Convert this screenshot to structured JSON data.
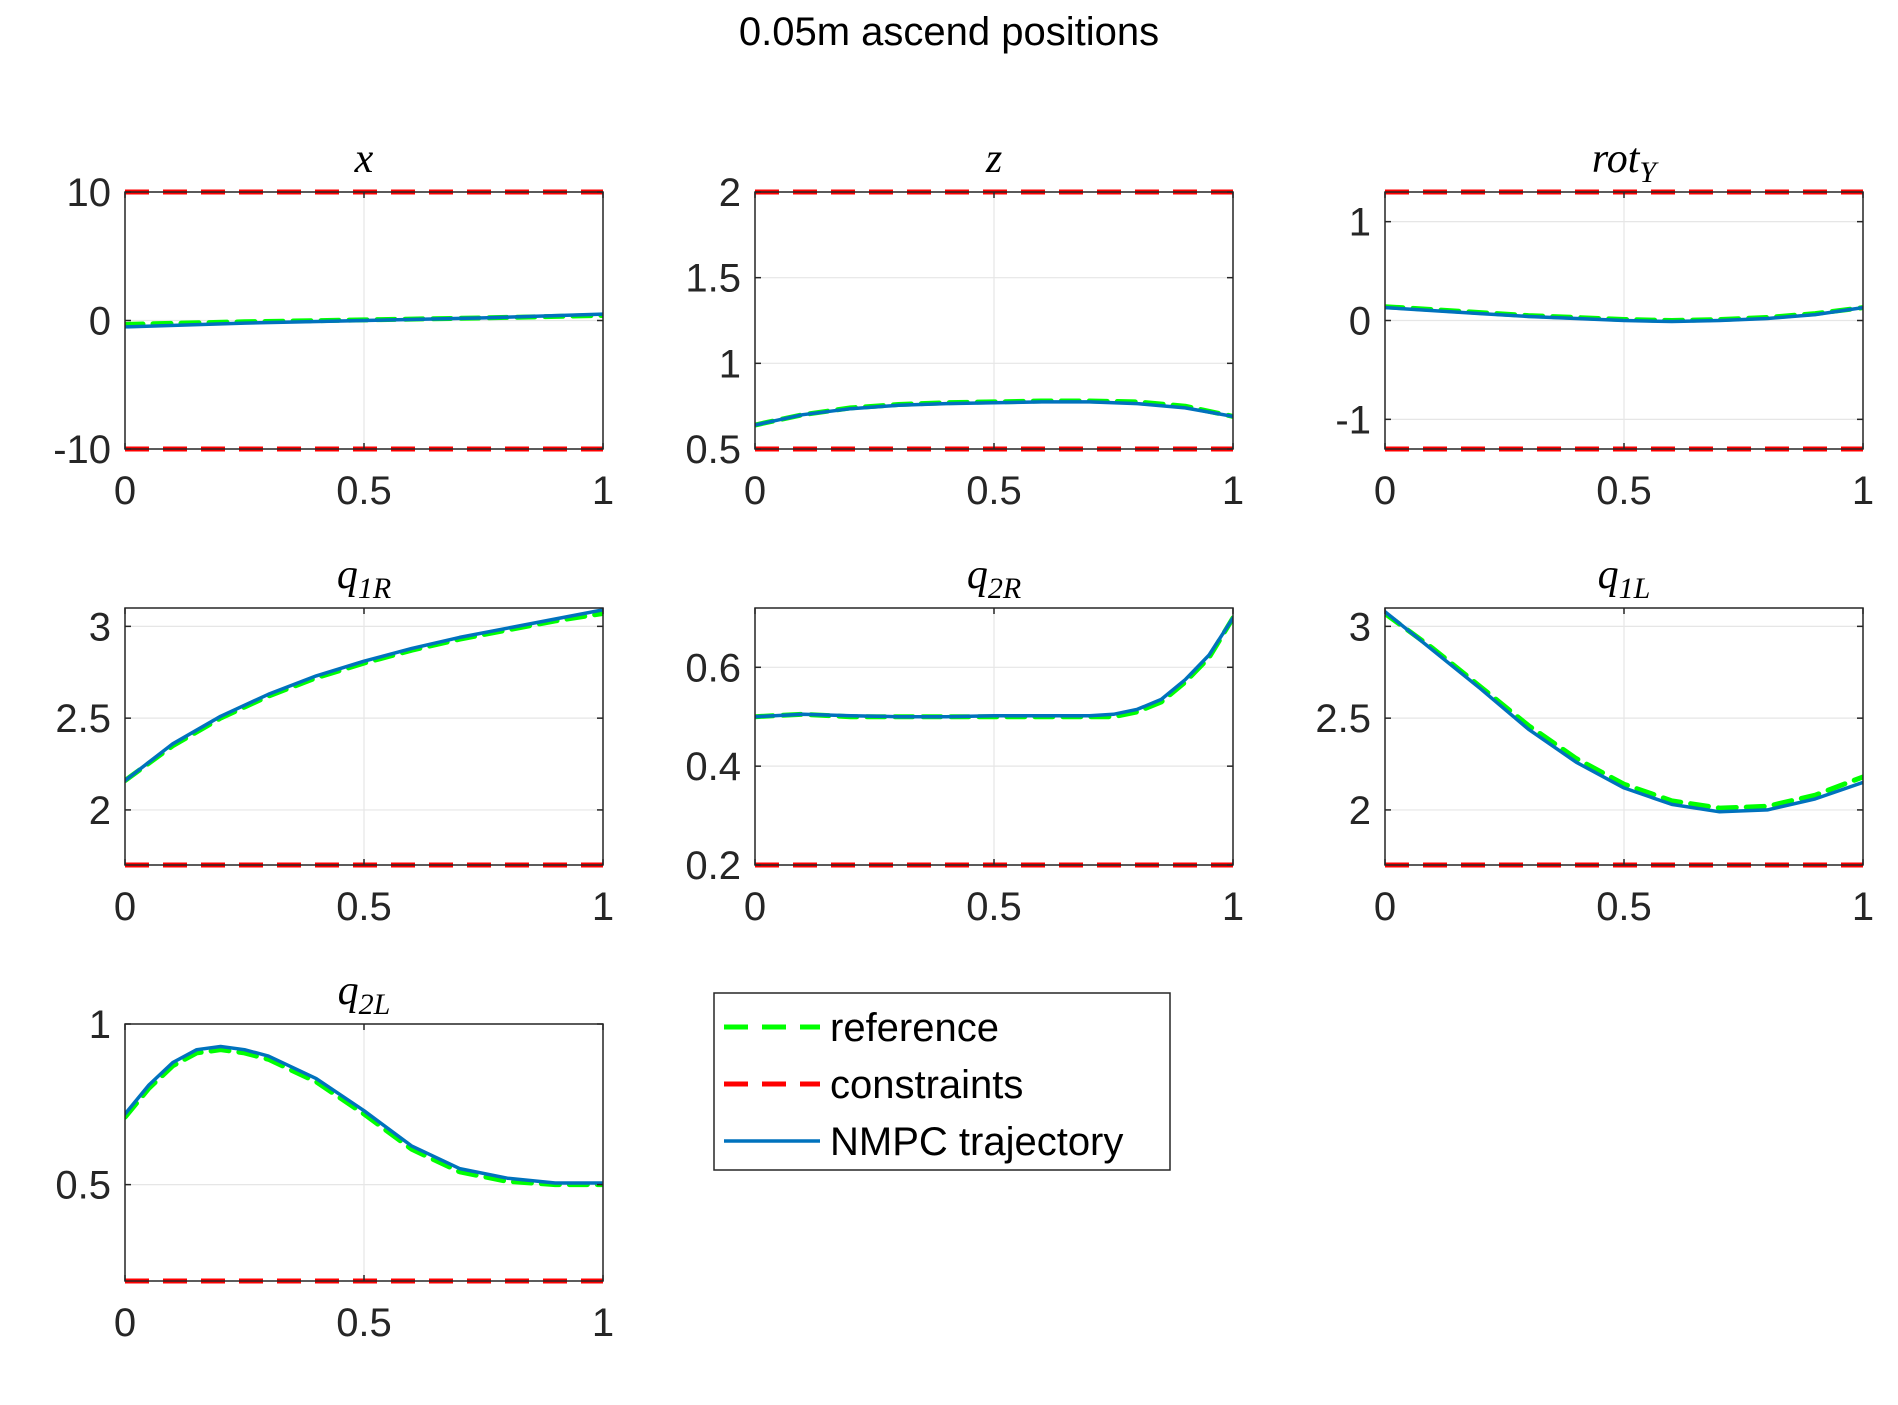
{
  "figure": {
    "title": "0.05m ascend positions",
    "colors": {
      "reference": "#00ff00",
      "constraints": "#ff0000",
      "trajectory": "#0072bd",
      "grid": "#e6e6e6",
      "axes": "#262626"
    }
  },
  "legend": {
    "items": [
      {
        "label": "reference",
        "style": "dashed",
        "color": "#00ff00"
      },
      {
        "label": "constraints",
        "style": "dashed",
        "color": "#ff0000"
      },
      {
        "label": "NMPC trajectory",
        "style": "solid",
        "color": "#0072bd"
      }
    ]
  },
  "chart_data": [
    {
      "type": "line",
      "title": "x",
      "title_base": "x",
      "title_sub": "",
      "xlim": [
        0,
        1
      ],
      "ylim": [
        -10,
        10
      ],
      "xticks": [
        0,
        0.5,
        1
      ],
      "xtick_labels": [
        "0",
        "0.5",
        "1"
      ],
      "yticks": [
        -10,
        0,
        10
      ],
      "ytick_labels": [
        "-10",
        "0",
        "10"
      ],
      "grid": true,
      "constraints": [
        -10,
        10
      ],
      "series": [
        {
          "name": "reference",
          "x": [
            0,
            0.25,
            0.5,
            0.75,
            1
          ],
          "y": [
            -0.3,
            -0.1,
            0.05,
            0.2,
            0.4
          ]
        },
        {
          "name": "NMPC trajectory",
          "x": [
            0,
            0.25,
            0.5,
            0.75,
            1
          ],
          "y": [
            -0.5,
            -0.2,
            0.0,
            0.2,
            0.5
          ]
        }
      ]
    },
    {
      "type": "line",
      "title": "z",
      "title_base": "z",
      "title_sub": "",
      "xlim": [
        0,
        1
      ],
      "ylim": [
        0.5,
        2
      ],
      "xticks": [
        0,
        0.5,
        1
      ],
      "xtick_labels": [
        "0",
        "0.5",
        "1"
      ],
      "yticks": [
        0.5,
        1,
        1.5,
        2
      ],
      "ytick_labels": [
        "0.5",
        "1",
        "1.5",
        "2"
      ],
      "grid": true,
      "constraints": [
        0.5,
        2
      ],
      "series": [
        {
          "name": "reference",
          "x": [
            0,
            0.1,
            0.2,
            0.3,
            0.4,
            0.5,
            0.6,
            0.7,
            0.8,
            0.9,
            1
          ],
          "y": [
            0.64,
            0.7,
            0.74,
            0.76,
            0.77,
            0.775,
            0.78,
            0.78,
            0.775,
            0.75,
            0.69
          ]
        },
        {
          "name": "NMPC trajectory",
          "x": [
            0,
            0.1,
            0.2,
            0.3,
            0.4,
            0.5,
            0.6,
            0.7,
            0.8,
            0.9,
            1
          ],
          "y": [
            0.64,
            0.7,
            0.735,
            0.755,
            0.765,
            0.77,
            0.775,
            0.775,
            0.765,
            0.74,
            0.69
          ]
        }
      ]
    },
    {
      "type": "line",
      "title": "rotY",
      "title_base": "rot",
      "title_sub": "Y",
      "xlim": [
        0,
        1
      ],
      "ylim": [
        -1.3,
        1.3
      ],
      "xticks": [
        0,
        0.5,
        1
      ],
      "xtick_labels": [
        "0",
        "0.5",
        "1"
      ],
      "yticks": [
        -1,
        0,
        1
      ],
      "ytick_labels": [
        "-1",
        "0",
        "1"
      ],
      "grid": true,
      "constraints": [
        -1.3,
        1.3
      ],
      "series": [
        {
          "name": "reference",
          "x": [
            0,
            0.1,
            0.2,
            0.3,
            0.4,
            0.5,
            0.6,
            0.7,
            0.8,
            0.9,
            1
          ],
          "y": [
            0.14,
            0.11,
            0.08,
            0.05,
            0.03,
            0.01,
            0.0,
            0.01,
            0.03,
            0.07,
            0.13
          ]
        },
        {
          "name": "NMPC trajectory",
          "x": [
            0,
            0.1,
            0.2,
            0.3,
            0.4,
            0.5,
            0.6,
            0.7,
            0.8,
            0.9,
            1
          ],
          "y": [
            0.13,
            0.1,
            0.07,
            0.04,
            0.02,
            0.0,
            -0.01,
            0.0,
            0.02,
            0.06,
            0.13
          ]
        }
      ]
    },
    {
      "type": "line",
      "title": "q1R",
      "title_base": "q",
      "title_sub": "1R",
      "xlim": [
        0,
        1
      ],
      "ylim": [
        1.7,
        3.1
      ],
      "xticks": [
        0,
        0.5,
        1
      ],
      "xtick_labels": [
        "0",
        "0.5",
        "1"
      ],
      "yticks": [
        2,
        2.5,
        3
      ],
      "ytick_labels": [
        "2",
        "2.5",
        "3"
      ],
      "grid": true,
      "constraints": [
        1.7
      ],
      "series": [
        {
          "name": "reference",
          "x": [
            0,
            0.1,
            0.2,
            0.3,
            0.4,
            0.5,
            0.6,
            0.7,
            0.8,
            0.9,
            1
          ],
          "y": [
            2.16,
            2.35,
            2.5,
            2.62,
            2.72,
            2.8,
            2.87,
            2.93,
            2.98,
            3.03,
            3.07
          ]
        },
        {
          "name": "NMPC trajectory",
          "x": [
            0,
            0.1,
            0.2,
            0.3,
            0.4,
            0.5,
            0.6,
            0.7,
            0.8,
            0.9,
            1
          ],
          "y": [
            2.16,
            2.36,
            2.51,
            2.63,
            2.73,
            2.81,
            2.88,
            2.94,
            2.99,
            3.04,
            3.09
          ]
        }
      ]
    },
    {
      "type": "line",
      "title": "q2R",
      "title_base": "q",
      "title_sub": "2R",
      "xlim": [
        0,
        1
      ],
      "ylim": [
        0.2,
        0.72
      ],
      "xticks": [
        0,
        0.5,
        1
      ],
      "xtick_labels": [
        "0",
        "0.5",
        "1"
      ],
      "yticks": [
        0.2,
        0.4,
        0.6
      ],
      "ytick_labels": [
        "0.2",
        "0.4",
        "0.6"
      ],
      "grid": true,
      "constraints": [
        0.2
      ],
      "series": [
        {
          "name": "reference",
          "x": [
            0,
            0.1,
            0.2,
            0.3,
            0.4,
            0.5,
            0.6,
            0.7,
            0.75,
            0.8,
            0.85,
            0.9,
            0.95,
            1
          ],
          "y": [
            0.5,
            0.505,
            0.5,
            0.5,
            0.5,
            0.5,
            0.5,
            0.5,
            0.5,
            0.51,
            0.53,
            0.57,
            0.62,
            0.7
          ]
        },
        {
          "name": "NMPC trajectory",
          "x": [
            0,
            0.1,
            0.2,
            0.3,
            0.4,
            0.5,
            0.6,
            0.7,
            0.75,
            0.8,
            0.85,
            0.9,
            0.95,
            1
          ],
          "y": [
            0.5,
            0.505,
            0.502,
            0.5,
            0.5,
            0.502,
            0.502,
            0.502,
            0.505,
            0.515,
            0.535,
            0.575,
            0.625,
            0.7
          ]
        }
      ]
    },
    {
      "type": "line",
      "title": "q1L",
      "title_base": "q",
      "title_sub": "1L",
      "xlim": [
        0,
        1
      ],
      "ylim": [
        1.7,
        3.1
      ],
      "xticks": [
        0,
        0.5,
        1
      ],
      "xtick_labels": [
        "0",
        "0.5",
        "1"
      ],
      "yticks": [
        2,
        2.5,
        3
      ],
      "ytick_labels": [
        "2",
        "2.5",
        "3"
      ],
      "grid": true,
      "constraints": [
        1.7
      ],
      "series": [
        {
          "name": "reference",
          "x": [
            0,
            0.1,
            0.2,
            0.3,
            0.4,
            0.5,
            0.6,
            0.7,
            0.8,
            0.9,
            1
          ],
          "y": [
            3.07,
            2.88,
            2.67,
            2.46,
            2.28,
            2.14,
            2.05,
            2.01,
            2.02,
            2.08,
            2.18
          ]
        },
        {
          "name": "NMPC trajectory",
          "x": [
            0,
            0.1,
            0.2,
            0.3,
            0.4,
            0.5,
            0.6,
            0.7,
            0.8,
            0.9,
            1
          ],
          "y": [
            3.08,
            2.87,
            2.66,
            2.44,
            2.26,
            2.12,
            2.03,
            1.99,
            2.0,
            2.06,
            2.15
          ]
        }
      ]
    },
    {
      "type": "line",
      "title": "q2L",
      "title_base": "q",
      "title_sub": "2L",
      "xlim": [
        0,
        1
      ],
      "ylim": [
        0.2,
        1
      ],
      "xticks": [
        0,
        0.5,
        1
      ],
      "xtick_labels": [
        "0",
        "0.5",
        "1"
      ],
      "yticks": [
        0.5,
        1
      ],
      "ytick_labels": [
        "0.5",
        "1"
      ],
      "grid": true,
      "constraints": [
        0.2
      ],
      "series": [
        {
          "name": "reference",
          "x": [
            0,
            0.05,
            0.1,
            0.15,
            0.2,
            0.25,
            0.3,
            0.4,
            0.5,
            0.6,
            0.7,
            0.8,
            0.9,
            1
          ],
          "y": [
            0.71,
            0.8,
            0.87,
            0.91,
            0.92,
            0.91,
            0.89,
            0.82,
            0.72,
            0.61,
            0.54,
            0.51,
            0.5,
            0.5
          ]
        },
        {
          "name": "NMPC trajectory",
          "x": [
            0,
            0.05,
            0.1,
            0.15,
            0.2,
            0.25,
            0.3,
            0.4,
            0.5,
            0.6,
            0.7,
            0.8,
            0.9,
            1
          ],
          "y": [
            0.72,
            0.81,
            0.88,
            0.92,
            0.93,
            0.92,
            0.9,
            0.83,
            0.73,
            0.62,
            0.55,
            0.52,
            0.505,
            0.505
          ]
        }
      ]
    }
  ]
}
